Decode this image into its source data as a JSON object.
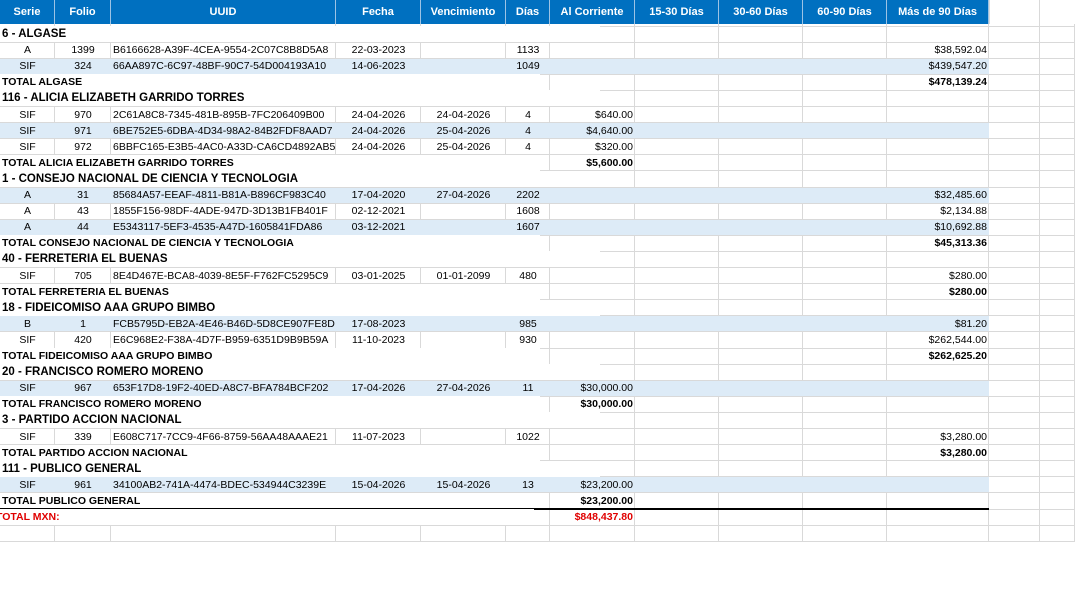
{
  "table": {
    "headers": [
      "Serie",
      "Folio",
      "UUID",
      "Fecha",
      "Vencimiento",
      "Días",
      "Al Corriente",
      "15-30 Días",
      "30-60 Días",
      "60-90 Días",
      "Más de 90 Días"
    ],
    "groups": [
      {
        "title": "6 - ALGASE",
        "rows": [
          {
            "serie": "A",
            "folio": "1399",
            "uuid": "B6166628-A39F-4CEA-9554-2C07C8B8D5A8",
            "fecha": "22-03-2023",
            "dias": "1133",
            "mas_90": "$38,592.04"
          },
          {
            "serie": "SIF",
            "folio": "324",
            "uuid": "66AA897C-6C97-48BF-90C7-54D004193A10",
            "fecha": "14-06-2023",
            "dias": "1049",
            "mas_90": "$439,547.20"
          }
        ],
        "total": {
          "label": "TOTAL ALGASE",
          "mas_90": "$478,139.24"
        }
      },
      {
        "title": "116 - ALICIA ELIZABETH GARRIDO TORRES",
        "rows": [
          {
            "serie": "SIF",
            "folio": "970",
            "uuid": "2C61A8C8-7345-481B-895B-7FC206409B00",
            "fecha": "24-04-2026",
            "vencimiento": "24-04-2026",
            "dias": "4",
            "al_corriente": "$640.00"
          },
          {
            "serie": "SIF",
            "folio": "971",
            "uuid": "6BE752E5-6DBA-4D34-98A2-84B2FDF8AAD7",
            "fecha": "24-04-2026",
            "vencimiento": "25-04-2026",
            "dias": "4",
            "al_corriente": "$4,640.00"
          },
          {
            "serie": "SIF",
            "folio": "972",
            "uuid": "6BBFC165-E3B5-4AC0-A33D-CA6CD4892AB5",
            "fecha": "24-04-2026",
            "vencimiento": "25-04-2026",
            "dias": "4",
            "al_corriente": "$320.00"
          }
        ],
        "total": {
          "label": "TOTAL ALICIA ELIZABETH GARRIDO TORRES",
          "al_corriente": "$5,600.00"
        }
      },
      {
        "title": "1 - CONSEJO NACIONAL DE CIENCIA Y TECNOLOGIA",
        "rows": [
          {
            "serie": "A",
            "folio": "31",
            "uuid": "85684A57-EEAF-4811-B81A-B896CF983C40",
            "fecha": "17-04-2020",
            "vencimiento": "27-04-2026",
            "dias": "2202",
            "mas_90": "$32,485.60"
          },
          {
            "serie": "A",
            "folio": "43",
            "uuid": "1855F156-98DF-4ADE-947D-3D13B1FB401F",
            "fecha": "02-12-2021",
            "dias": "1608",
            "mas_90": "$2,134.88"
          },
          {
            "serie": "A",
            "folio": "44",
            "uuid": "E5343117-5EF3-4535-A47D-1605841FDA86",
            "fecha": "03-12-2021",
            "dias": "1607",
            "mas_90": "$10,692.88"
          }
        ],
        "total": {
          "label": "TOTAL CONSEJO NACIONAL DE CIENCIA Y TECNOLOGIA",
          "mas_90": "$45,313.36"
        }
      },
      {
        "title": "40 - FERRETERIA EL BUENAS",
        "rows": [
          {
            "serie": "SIF",
            "folio": "705",
            "uuid": "8E4D467E-BCA8-4039-8E5F-F762FC5295C9",
            "fecha": "03-01-2025",
            "vencimiento": "01-01-2099",
            "dias": "480",
            "mas_90": "$280.00"
          }
        ],
        "total": {
          "label": "TOTAL FERRETERIA EL BUENAS",
          "mas_90": "$280.00"
        }
      },
      {
        "title": "18 - FIDEICOMISO AAA GRUPO BIMBO",
        "rows": [
          {
            "serie": "B",
            "folio": "1",
            "uuid": "FCB5795D-EB2A-4E46-B46D-5D8CE907FE8D",
            "fecha": "17-08-2023",
            "dias": "985",
            "mas_90": "$81.20"
          },
          {
            "serie": "SIF",
            "folio": "420",
            "uuid": "E6C968E2-F38A-4D7F-B959-6351D9B9B59A",
            "fecha": "11-10-2023",
            "dias": "930",
            "mas_90": "$262,544.00"
          }
        ],
        "total": {
          "label": "TOTAL FIDEICOMISO AAA GRUPO BIMBO",
          "mas_90": "$262,625.20"
        }
      },
      {
        "title": "20 - FRANCISCO ROMERO MORENO",
        "rows": [
          {
            "serie": "SIF",
            "folio": "967",
            "uuid": "653F17D8-19F2-40ED-A8C7-BFA784BCF202",
            "fecha": "17-04-2026",
            "vencimiento": "27-04-2026",
            "dias": "11",
            "al_corriente": "$30,000.00"
          }
        ],
        "total": {
          "label": "TOTAL FRANCISCO ROMERO MORENO",
          "al_corriente": "$30,000.00"
        }
      },
      {
        "title": "3 - PARTIDO ACCION NACIONAL",
        "rows": [
          {
            "serie": "SIF",
            "folio": "339",
            "uuid": "E608C717-7CC9-4F66-8759-56AA48AAAE21",
            "fecha": "11-07-2023",
            "dias": "1022",
            "mas_90": "$3,280.00"
          }
        ],
        "total": {
          "label": "TOTAL PARTIDO ACCION NACIONAL",
          "mas_90": "$3,280.00"
        }
      },
      {
        "title": "111 - PUBLICO GENERAL",
        "rows": [
          {
            "serie": "SIF",
            "folio": "961",
            "uuid": "34100AB2-741A-4474-BDEC-534944C3239E",
            "fecha": "15-04-2026",
            "vencimiento": "15-04-2026",
            "dias": "13",
            "al_corriente": "$23,200.00"
          }
        ],
        "total": {
          "label": "TOTAL PUBLICO GENERAL",
          "al_corriente": "$23,200.00"
        }
      }
    ],
    "grand_total": {
      "label": "TOTAL MXN:",
      "al_corriente": "$848,437.80"
    }
  }
}
